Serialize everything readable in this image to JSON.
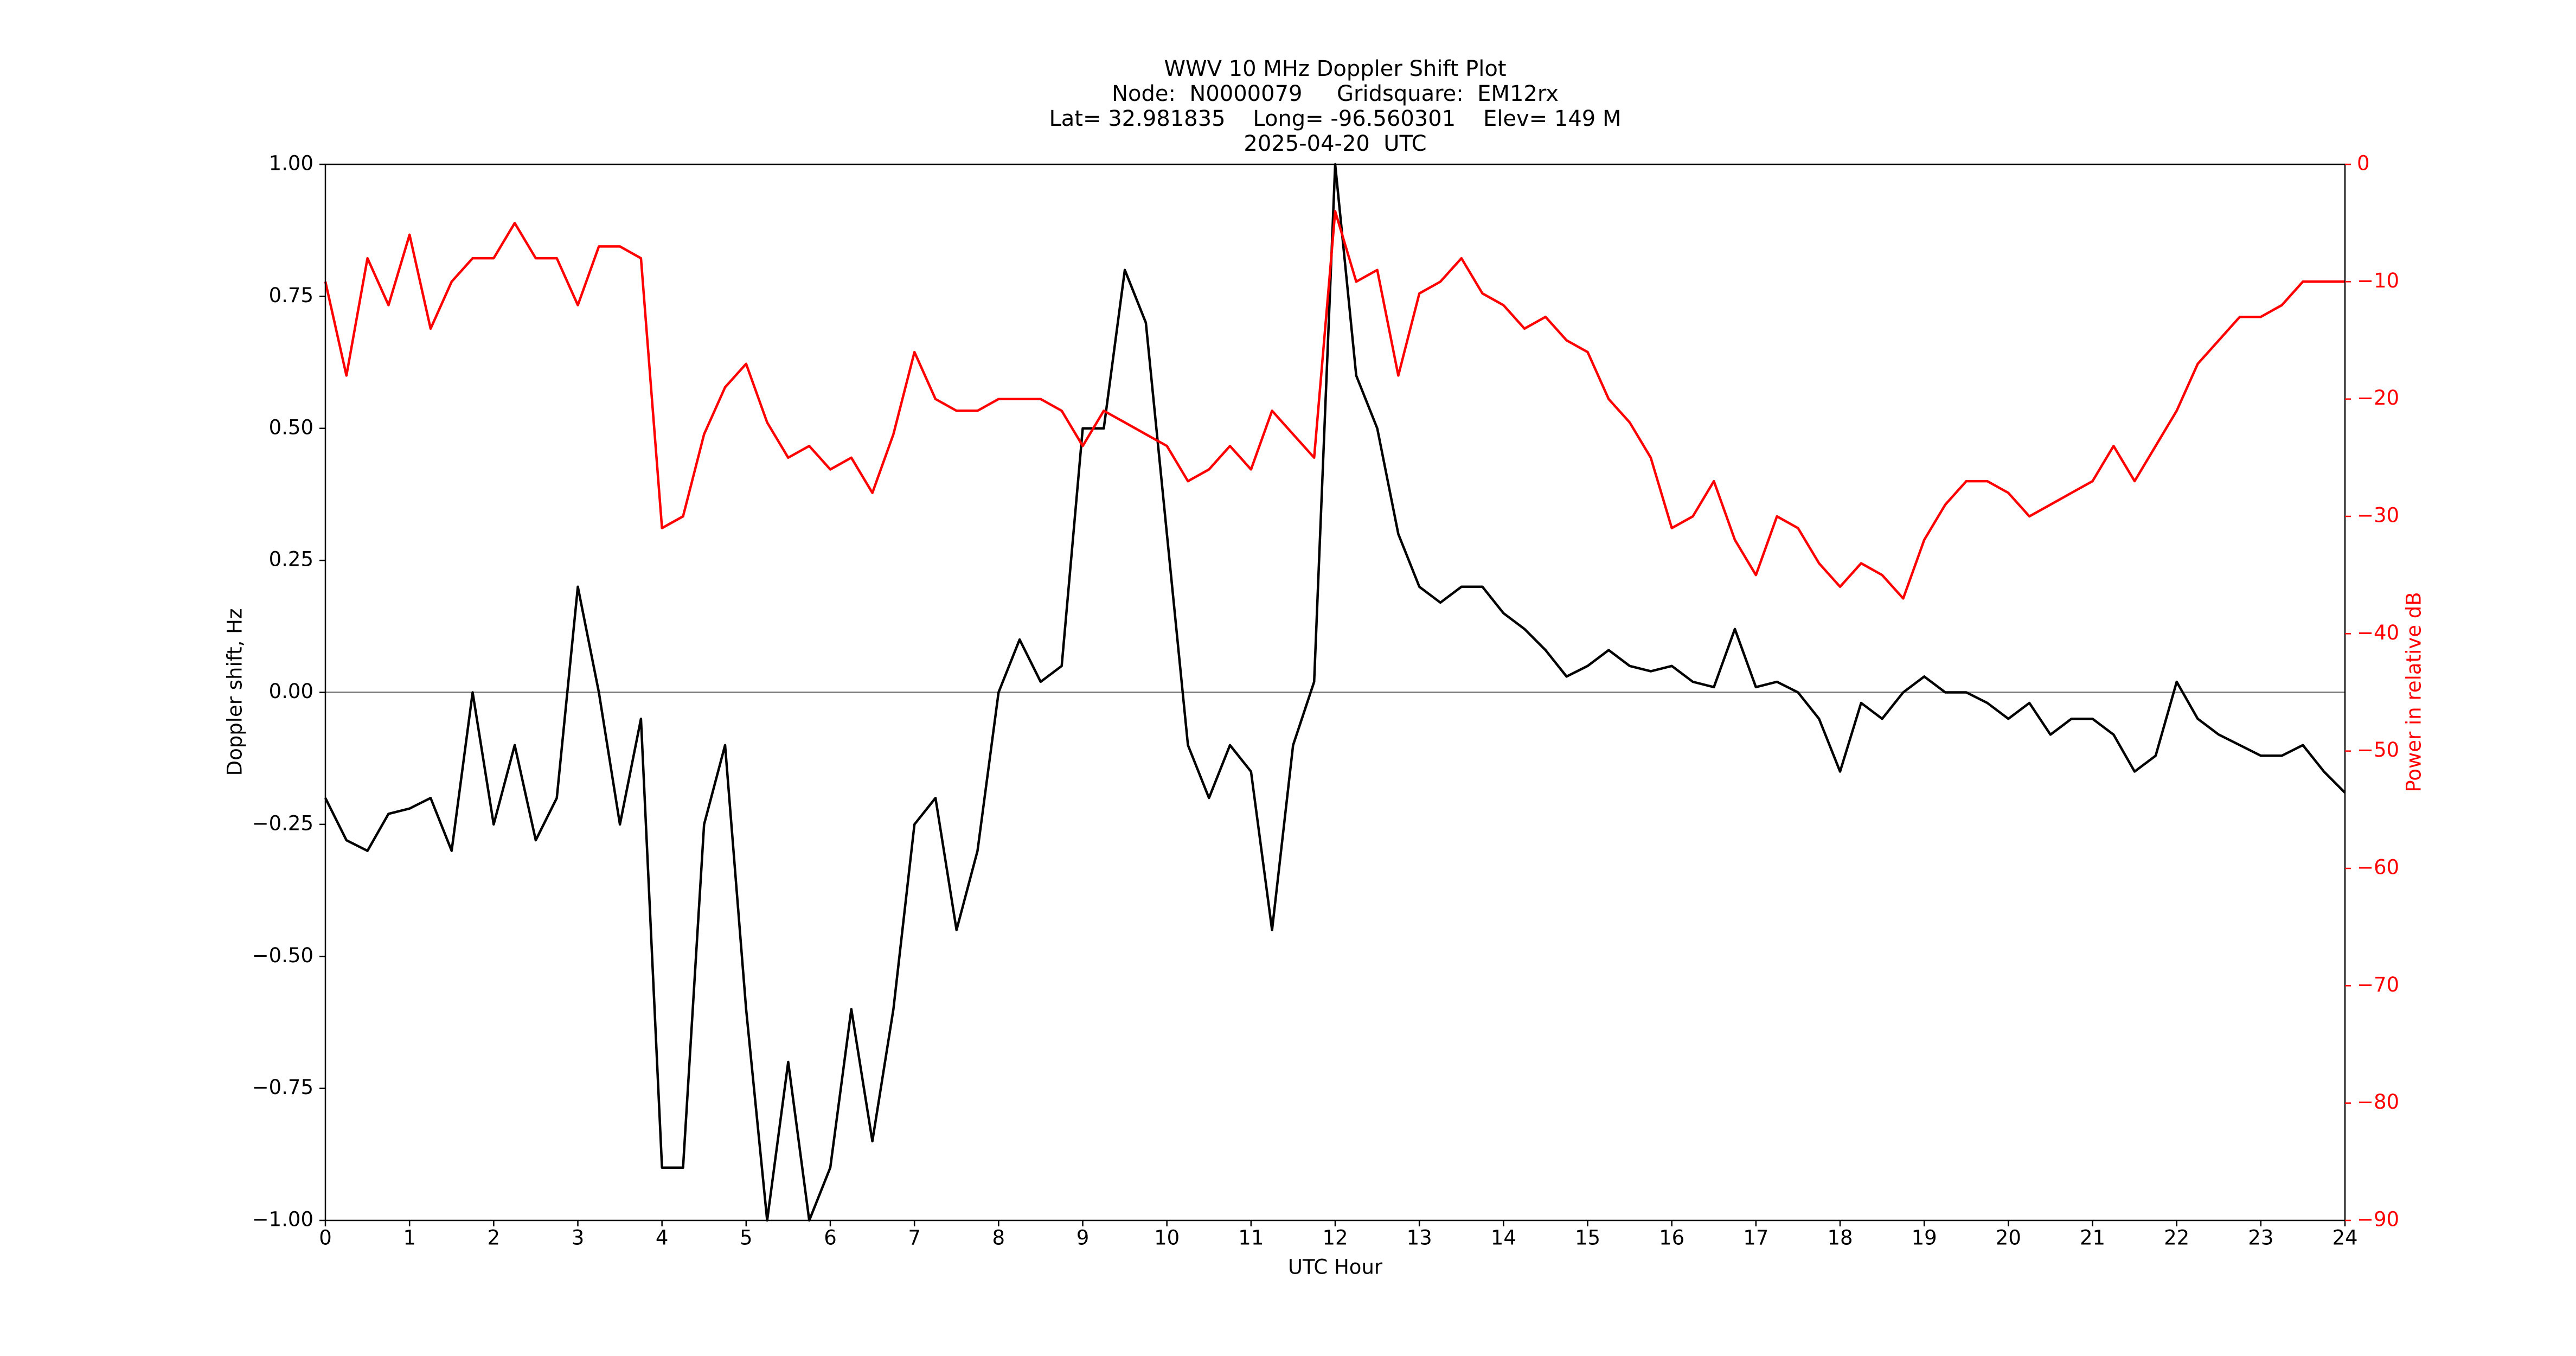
{
  "chart_data": {
    "type": "line",
    "title": [
      "WWV 10 MHz Doppler Shift Plot",
      "Node:  N0000079     Gridsquare:  EM12rx",
      "Lat= 32.981835    Long= -96.560301    Elev= 149 M",
      "2025-04-20  UTC"
    ],
    "xlabel": "UTC Hour",
    "ylabel": "Doppler shift, Hz",
    "y2label": "Power in relative dB",
    "x": [
      0,
      0.25,
      0.5,
      0.75,
      1,
      1.25,
      1.5,
      1.75,
      2,
      2.25,
      2.5,
      2.75,
      3,
      3.25,
      3.5,
      3.75,
      4,
      4.25,
      4.5,
      4.75,
      5,
      5.25,
      5.5,
      5.75,
      6,
      6.25,
      6.5,
      6.75,
      7,
      7.25,
      7.5,
      7.75,
      8,
      8.25,
      8.5,
      8.75,
      9,
      9.25,
      9.5,
      9.75,
      10,
      10.25,
      10.5,
      10.75,
      11,
      11.25,
      11.5,
      11.75,
      12,
      12.25,
      12.5,
      12.75,
      13,
      13.25,
      13.5,
      13.75,
      14,
      14.25,
      14.5,
      14.75,
      15,
      15.25,
      15.5,
      15.75,
      16,
      16.25,
      16.5,
      16.75,
      17,
      17.25,
      17.5,
      17.75,
      18,
      18.25,
      18.5,
      18.75,
      19,
      19.25,
      19.5,
      19.75,
      20,
      20.25,
      20.5,
      20.75,
      21,
      21.25,
      21.5,
      21.75,
      22,
      22.25,
      22.5,
      22.75,
      23,
      23.25,
      23.5,
      23.75,
      24
    ],
    "series": [
      {
        "color": "#000000",
        "values": [
          -0.2,
          -0.28,
          -0.3,
          -0.23,
          -0.22,
          -0.2,
          -0.3,
          0.0,
          -0.25,
          -0.1,
          -0.28,
          -0.2,
          0.2,
          0.0,
          -0.25,
          -0.05,
          -0.9,
          -0.9,
          -0.25,
          -0.1,
          -0.6,
          -1.0,
          -0.7,
          -1.0,
          -0.9,
          -0.6,
          -0.85,
          -0.6,
          -0.25,
          -0.2,
          -0.45,
          -0.3,
          0.0,
          0.1,
          0.02,
          0.05,
          0.5,
          0.5,
          0.8,
          0.7,
          0.3,
          -0.1,
          -0.2,
          -0.1,
          -0.15,
          -0.45,
          -0.1,
          0.02,
          1.0,
          0.6,
          0.5,
          0.3,
          0.2,
          0.17,
          0.2,
          0.2,
          0.15,
          0.12,
          0.08,
          0.03,
          0.05,
          0.08,
          0.05,
          0.04,
          0.05,
          0.02,
          0.01,
          0.12,
          0.01,
          0.02,
          0.0,
          -0.05,
          -0.15,
          -0.02,
          -0.05,
          0.0,
          0.03,
          0.0,
          0.0,
          -0.02,
          -0.05,
          -0.02,
          -0.08,
          -0.05,
          -0.05,
          -0.08,
          -0.15,
          -0.12,
          0.02,
          -0.05,
          -0.08,
          -0.1,
          -0.12,
          -0.12,
          -0.1,
          -0.15,
          -0.19
        ]
      },
      {
        "color": "#ff0000",
        "axis": "y2",
        "values": [
          -10,
          -18,
          -8,
          -12,
          -6,
          -14,
          -10,
          -8,
          -8,
          -5,
          -8,
          -8,
          -12,
          -7,
          -7,
          -8,
          -31,
          -30,
          -23,
          -19,
          -17,
          -22,
          -25,
          -24,
          -26,
          -25,
          -28,
          -23,
          -16,
          -20,
          -21,
          -21,
          -20,
          -20,
          -20,
          -21,
          -24,
          -21,
          -22,
          -23,
          -24,
          -27,
          -26,
          -24,
          -26,
          -21,
          -23,
          -25,
          -4,
          -10,
          -9,
          -18,
          -11,
          -10,
          -8,
          -11,
          -12,
          -14,
          -13,
          -15,
          -16,
          -20,
          -22,
          -25,
          -31,
          -30,
          -27,
          -32,
          -35,
          -30,
          -31,
          -34,
          -36,
          -34,
          -35,
          -37,
          -32,
          -29,
          -27,
          -27,
          -28,
          -30,
          -29,
          -28,
          -27,
          -24,
          -27,
          -24,
          -21,
          -17,
          -15,
          -13,
          -13,
          -12,
          -10,
          -10,
          -10
        ]
      }
    ],
    "xlim": [
      0,
      24
    ],
    "xticks": [
      0,
      1,
      2,
      3,
      4,
      5,
      6,
      7,
      8,
      9,
      10,
      11,
      12,
      13,
      14,
      15,
      16,
      17,
      18,
      19,
      20,
      21,
      22,
      23,
      24
    ],
    "ylim": [
      -1,
      1
    ],
    "yticks": [
      {
        "value": -1,
        "label": "−1.00"
      },
      {
        "value": -0.75,
        "label": "−0.75"
      },
      {
        "value": -0.5,
        "label": "−0.50"
      },
      {
        "value": -0.25,
        "label": "−0.25"
      },
      {
        "value": 0,
        "label": "0.00"
      },
      {
        "value": 0.25,
        "label": "0.25"
      },
      {
        "value": 0.5,
        "label": "0.50"
      },
      {
        "value": 0.75,
        "label": "0.75"
      },
      {
        "value": 1,
        "label": "1.00"
      }
    ],
    "y2lim": [
      -90,
      0
    ],
    "y2ticks": [
      {
        "value": -90,
        "label": "−90"
      },
      {
        "value": -80,
        "label": "−80"
      },
      {
        "value": -70,
        "label": "−70"
      },
      {
        "value": -60,
        "label": "−60"
      },
      {
        "value": -50,
        "label": "−50"
      },
      {
        "value": -40,
        "label": "−40"
      },
      {
        "value": -30,
        "label": "−30"
      },
      {
        "value": -20,
        "label": "−20"
      },
      {
        "value": -10,
        "label": "−10"
      },
      0
    ],
    "y2color": "#ff0000"
  }
}
